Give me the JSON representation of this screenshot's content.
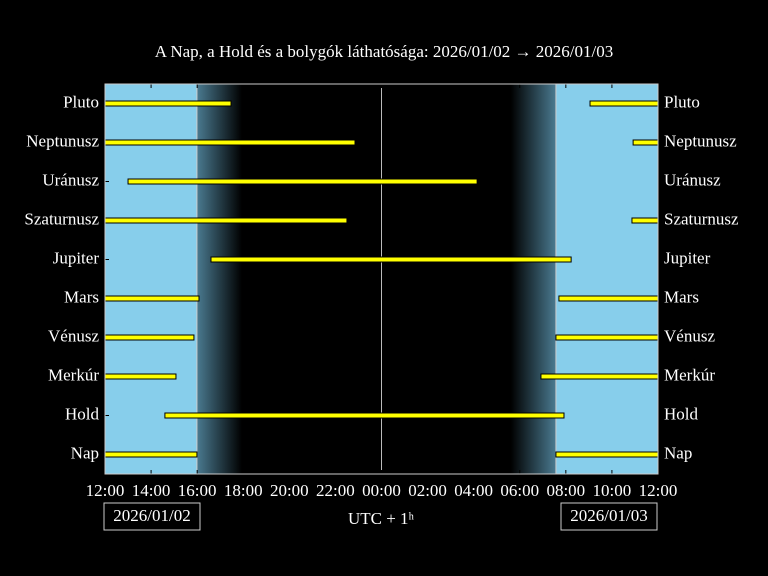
{
  "chart_data": {
    "type": "timeline",
    "title": "A Nap, a Hold és a bolygók láthatósága: 2026/01/02 → 2026/01/03",
    "xlabel": "UTC + 1ʰ",
    "dates": [
      "2026/01/02",
      "2026/01/03"
    ],
    "categories": [
      "Pluto",
      "Neptunusz",
      "Uránusz",
      "Szaturnusz",
      "Jupiter",
      "Mars",
      "Vénusz",
      "Merkúr",
      "Hold",
      "Nap"
    ],
    "intervals": [
      [
        [
          0,
          5.47
        ],
        [
          21.05,
          24
        ]
      ],
      [
        [
          0,
          10.85
        ],
        [
          22.92,
          24
        ]
      ],
      [
        [
          1.0,
          16.15
        ]
      ],
      [
        [
          0,
          10.5
        ],
        [
          22.87,
          24
        ]
      ],
      [
        [
          4.6,
          20.23
        ]
      ],
      [
        [
          0,
          4.08
        ],
        [
          19.7,
          24
        ]
      ],
      [
        [
          0,
          3.86
        ],
        [
          19.57,
          24
        ]
      ],
      [
        [
          0,
          3.08
        ],
        [
          18.92,
          24
        ]
      ],
      [
        [
          2.6,
          19.92
        ]
      ],
      [
        [
          0,
          3.99
        ],
        [
          19.57,
          24
        ]
      ]
    ],
    "night": [
      3.99,
      19.57
    ],
    "midnight": 12,
    "xlim": [
      0,
      24
    ],
    "xticks": [
      {
        "value": 0,
        "label": "12:00"
      },
      {
        "value": 2,
        "label": "14:00"
      },
      {
        "value": 4,
        "label": "16:00"
      },
      {
        "value": 6,
        "label": "18:00"
      },
      {
        "value": 8,
        "label": "20:00"
      },
      {
        "value": 10,
        "label": "22:00"
      },
      {
        "value": 12,
        "label": "00:00"
      },
      {
        "value": 14,
        "label": "02:00"
      },
      {
        "value": 16,
        "label": "04:00"
      },
      {
        "value": 18,
        "label": "06:00"
      },
      {
        "value": 20,
        "label": "08:00"
      },
      {
        "value": 22,
        "label": "10:00"
      },
      {
        "value": 24,
        "label": "12:00"
      }
    ],
    "day_color": "#87ceeb",
    "bar_color": "#ffff00"
  }
}
